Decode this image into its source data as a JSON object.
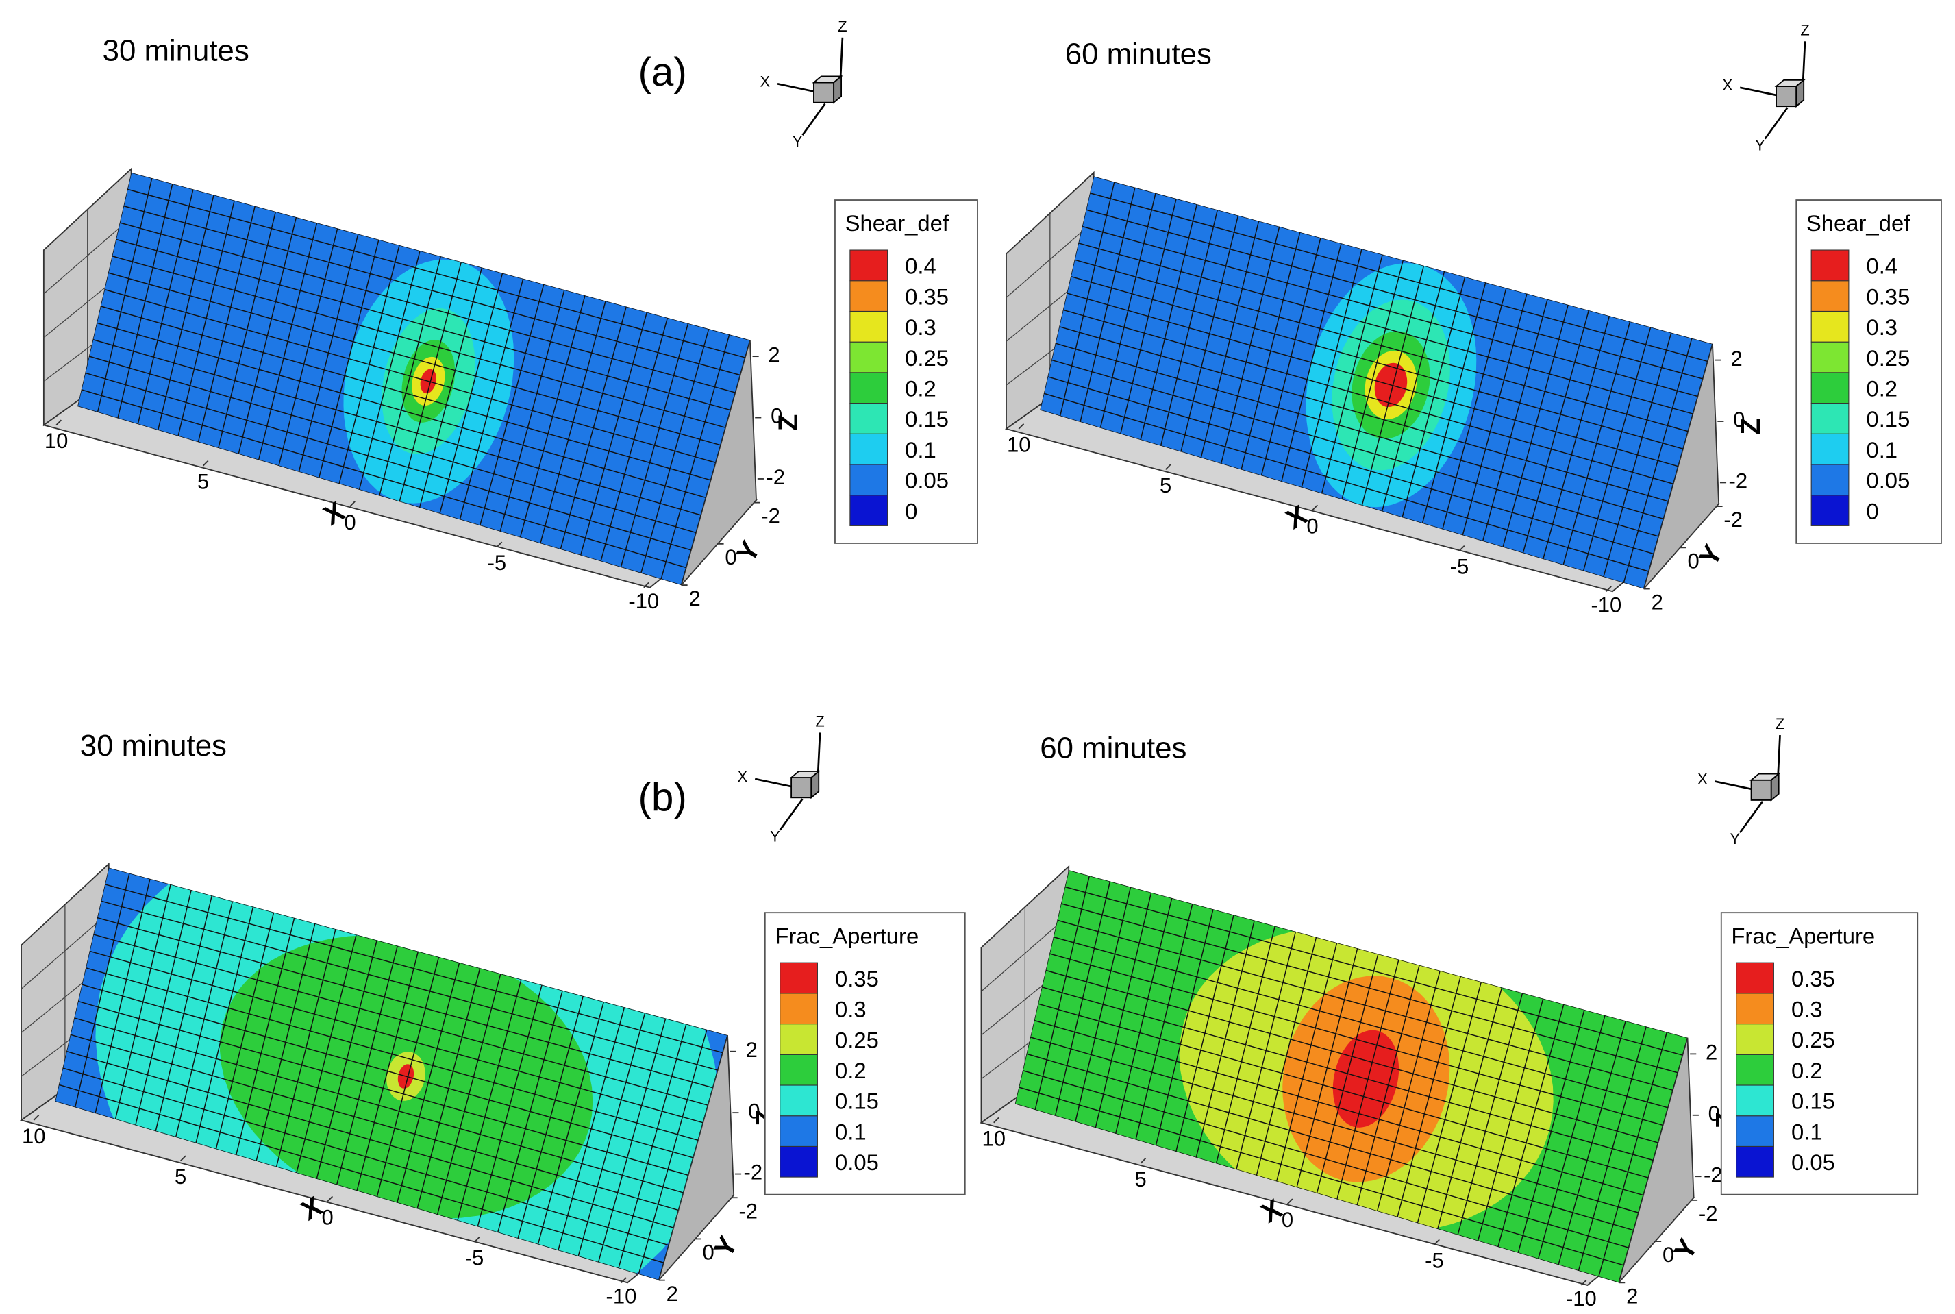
{
  "chart_data": [
    {
      "type": "surface",
      "title": "30 minutes",
      "panel_label": "(a)",
      "colorbar_title": "Shear_def",
      "levels": [
        0,
        0.05,
        0.1,
        0.15,
        0.2,
        0.25,
        0.3,
        0.35,
        0.4
      ],
      "level_colors": [
        "#0a14d2",
        "#1e78e6",
        "#1ecdf0",
        "#2de6b4",
        "#2dcd3c",
        "#7de632",
        "#e6e61e",
        "#f58c1e",
        "#e61e1e"
      ],
      "xlabel": "X",
      "ylabel": "Y",
      "zlabel": "Z",
      "orientation_axes": [
        "X",
        "Y",
        "Z"
      ],
      "xlim": [
        10,
        -10
      ],
      "xticks": [
        10,
        5,
        0,
        -5,
        -10
      ],
      "ylim": [
        -2,
        2
      ],
      "yticks": [
        -2,
        0,
        2
      ],
      "zlim": [
        2,
        -2
      ],
      "zticks": [
        2,
        0,
        -2
      ]
    },
    {
      "type": "surface",
      "title": "60 minutes",
      "colorbar_title": "Shear_def",
      "levels": [
        0,
        0.05,
        0.1,
        0.15,
        0.2,
        0.25,
        0.3,
        0.35,
        0.4
      ],
      "level_colors": [
        "#0a14d2",
        "#1e78e6",
        "#1ecdf0",
        "#2de6b4",
        "#2dcd3c",
        "#7de632",
        "#e6e61e",
        "#f58c1e",
        "#e61e1e"
      ],
      "xlabel": "X",
      "ylabel": "Y",
      "zlabel": "Z",
      "orientation_axes": [
        "X",
        "Y",
        "Z"
      ],
      "xlim": [
        10,
        -10
      ],
      "xticks": [
        10,
        5,
        0,
        -5,
        -10
      ],
      "ylim": [
        -2,
        2
      ],
      "yticks": [
        -2,
        0,
        2
      ],
      "zlim": [
        2,
        -2
      ],
      "zticks": [
        2,
        0,
        -2
      ]
    },
    {
      "type": "surface",
      "title": "30 minutes",
      "panel_label": "(b)",
      "colorbar_title": "Frac_Aperture",
      "levels": [
        0.05,
        0.1,
        0.15,
        0.2,
        0.25,
        0.3,
        0.35
      ],
      "level_colors": [
        "#0a14d2",
        "#1e78e6",
        "#2de6d2",
        "#2dcd3c",
        "#c8e632",
        "#f58c1e",
        "#e61e1e"
      ],
      "xlabel": "X",
      "ylabel": "Y",
      "zlabel": "Z",
      "orientation_axes": [
        "X",
        "Y",
        "Z"
      ],
      "xlim": [
        10,
        -10
      ],
      "xticks": [
        10,
        5,
        0,
        -5,
        -10
      ],
      "ylim": [
        -2,
        2
      ],
      "yticks": [
        -2,
        0,
        2
      ],
      "zlim": [
        2,
        -2
      ],
      "zticks": [
        2,
        0,
        -2
      ]
    },
    {
      "type": "surface",
      "title": "60 minutes",
      "colorbar_title": "Frac_Aperture",
      "levels": [
        0.05,
        0.1,
        0.15,
        0.2,
        0.25,
        0.3,
        0.35
      ],
      "level_colors": [
        "#0a14d2",
        "#1e78e6",
        "#2de6d2",
        "#2dcd3c",
        "#c8e632",
        "#f58c1e",
        "#e61e1e"
      ],
      "xlabel": "X",
      "ylabel": "Y",
      "zlabel": "Z",
      "orientation_axes": [
        "X",
        "Y",
        "Z"
      ],
      "xlim": [
        10,
        -10
      ],
      "xticks": [
        10,
        5,
        0,
        -5,
        -10
      ],
      "ylim": [
        -2,
        2
      ],
      "yticks": [
        -2,
        0,
        2
      ],
      "zlim": [
        2,
        -2
      ],
      "zticks": [
        2,
        0,
        -2
      ]
    }
  ]
}
